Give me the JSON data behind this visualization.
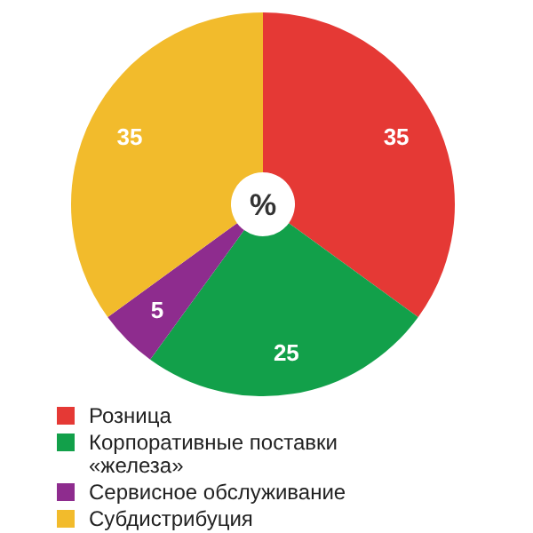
{
  "chart_data": {
    "type": "donut",
    "categories": [
      "Розница",
      "Корпоративные поставки «железа»",
      "Сервисное обслуживание",
      "Субдистрибуция"
    ],
    "values": [
      35,
      25,
      5,
      35
    ],
    "colors": [
      "#e53935",
      "#12a04a",
      "#8e2c8e",
      "#f2bb2c"
    ],
    "data_labels": true,
    "legend": "bottom",
    "annotations": [
      "%"
    ]
  }
}
